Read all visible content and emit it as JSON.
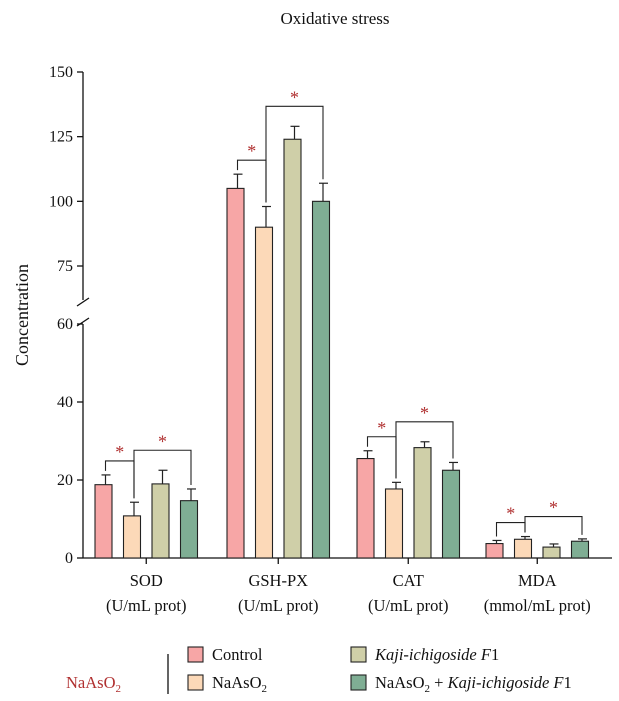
{
  "chart_data": {
    "type": "bar",
    "title": "Oxidative stress",
    "ylabel": "Concentration",
    "xlabel": "",
    "axis_break": {
      "lower": [
        0,
        60
      ],
      "upper": [
        60,
        150
      ]
    },
    "y_ticks_lower": [
      0,
      20,
      40,
      60
    ],
    "y_ticks_upper": [
      75,
      100,
      125,
      150
    ],
    "categories": [
      {
        "name": "SOD",
        "unit": "(U/mL prot)"
      },
      {
        "name": "GSH-PX",
        "unit": "(U/mL prot)"
      },
      {
        "name": "CAT",
        "unit": "(U/mL prot)"
      },
      {
        "name": "MDA",
        "unit": "(mmol/mL prot)"
      }
    ],
    "series": [
      {
        "name": "Control",
        "color": "#f7a6a6",
        "values": [
          18.8,
          105.0,
          25.5,
          3.7
        ],
        "errors": [
          2.5,
          5.5,
          2.0,
          0.8
        ]
      },
      {
        "name": "NaAsO2",
        "name_base": "NaAsO",
        "name_sub": "2",
        "color": "#fcd9b8",
        "values": [
          10.8,
          90.0,
          17.7,
          4.8
        ],
        "errors": [
          3.5,
          8.0,
          1.7,
          0.7
        ]
      },
      {
        "name": "Kaji-ichigoside F1",
        "color": "#cfcfa8",
        "values": [
          19.0,
          124.0,
          28.3,
          2.8
        ],
        "errors": [
          3.5,
          5.0,
          1.5,
          0.8
        ]
      },
      {
        "name": "NaAsO2 + Kaji-ichigoside F1",
        "color": "#7fae94",
        "values": [
          14.7,
          100.0,
          22.5,
          4.3
        ],
        "errors": [
          3.0,
          7.0,
          2.0,
          0.6
        ]
      }
    ],
    "significance": [
      {
        "category": 0,
        "from": 0,
        "to": 1,
        "label": "*"
      },
      {
        "category": 0,
        "from": 1,
        "to": 3,
        "label": "*"
      },
      {
        "category": 1,
        "from": 0,
        "to": 1,
        "label": "*"
      },
      {
        "category": 1,
        "from": 1,
        "to": 3,
        "label": "*"
      },
      {
        "category": 2,
        "from": 0,
        "to": 1,
        "label": "*"
      },
      {
        "category": 2,
        "from": 1,
        "to": 3,
        "label": "*"
      },
      {
        "category": 3,
        "from": 0,
        "to": 1,
        "label": "*"
      },
      {
        "category": 3,
        "from": 1,
        "to": 3,
        "label": "*"
      }
    ],
    "sig_color": "#b03030",
    "legend": {
      "group_label": "NaAsO2",
      "group_label_base": "NaAsO",
      "group_label_sub": "2",
      "placement": "bottom",
      "entries": [
        {
          "text": "Control"
        },
        {
          "text": "NaAsO",
          "sub": "2"
        },
        {
          "italic": "Kaji-ichigoside F",
          "tail": "1"
        },
        {
          "text": "NaAsO",
          "sub": "2",
          "text2": " + ",
          "italic": "Kaji-ichigoside F",
          "tail": "1"
        }
      ]
    }
  }
}
